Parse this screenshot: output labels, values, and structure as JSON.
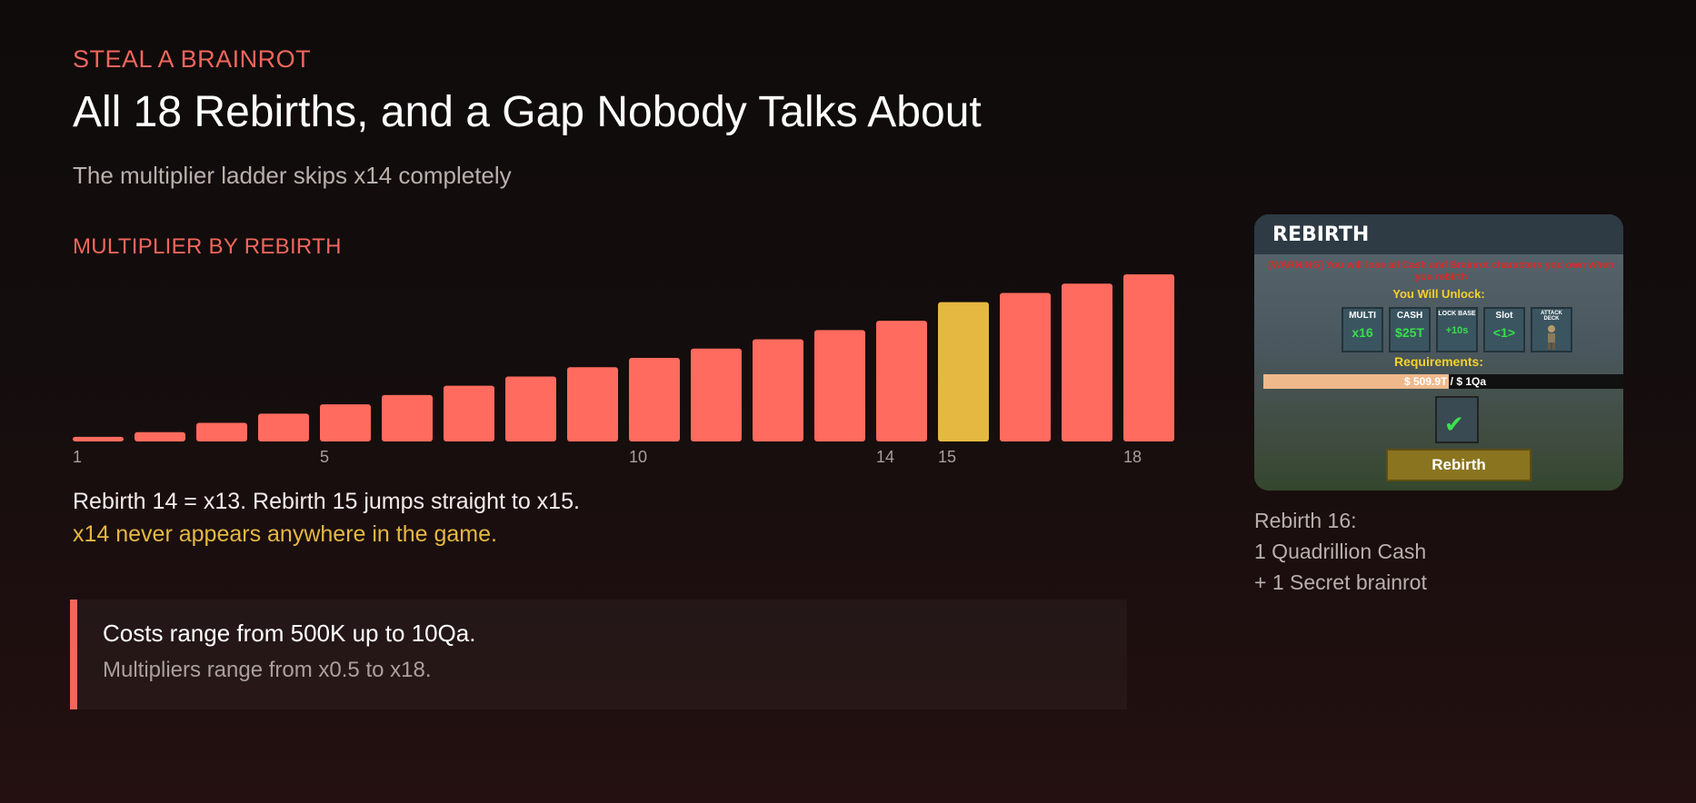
{
  "header": {
    "kicker": "STEAL A BRAINROT",
    "title": "All 18 Rebirths, and a Gap Nobody Talks About",
    "subtitle": "The multiplier ladder skips x14 completely"
  },
  "chart_section_label": "MULTIPLIER BY REBIRTH",
  "chart_data": {
    "type": "bar",
    "categories": [
      "1",
      "2",
      "3",
      "4",
      "5",
      "6",
      "7",
      "8",
      "9",
      "10",
      "11",
      "12",
      "13",
      "14",
      "15",
      "16",
      "17",
      "18"
    ],
    "visible_tick_labels": [
      "1",
      "5",
      "10",
      "14",
      "15",
      "18"
    ],
    "values": [
      0.5,
      1,
      2,
      3,
      4,
      5,
      6,
      7,
      8,
      9,
      10,
      11,
      12,
      13,
      15,
      16,
      17,
      18
    ],
    "highlight_index": 14,
    "colors": {
      "bar": "#ff6b5e",
      "highlight": "#e5b842"
    },
    "title": "",
    "xlabel": "",
    "ylabel": "",
    "ylim": [
      0,
      18
    ],
    "grid": false
  },
  "notes": {
    "line1": "Rebirth 14 = x13. Rebirth 15 jumps straight to x15.",
    "line2": "x14 never appears anywhere in the game."
  },
  "callout": {
    "main": "Costs range from 500K up to 10Qa.",
    "sub": "Multipliers range from x0.5 to x18."
  },
  "screenshot": {
    "title": "REBIRTH",
    "warning": "[WARNING] You will lose all Cash and Brainrot characters you own when you rebirth",
    "unlock_label": "You Will Unlock:",
    "tiles": [
      {
        "label": "MULTI",
        "value": "x16"
      },
      {
        "label": "CASH",
        "value": "$25T"
      },
      {
        "label": "LOCK BASE",
        "value": "+10s"
      },
      {
        "label": "Slot",
        "value": "<1>"
      },
      {
        "label": "ATTACK DECK",
        "value": ""
      }
    ],
    "requirements_label": "Requirements:",
    "progress_text": "$ 509.9T / $ 1Qa",
    "progress_fraction": 0.51,
    "button_label": "Rebirth"
  },
  "reward": {
    "line1": "Rebirth 16:",
    "line2": "1 Quadrillion Cash",
    "line3": "+ 1 Secret brainrot"
  }
}
